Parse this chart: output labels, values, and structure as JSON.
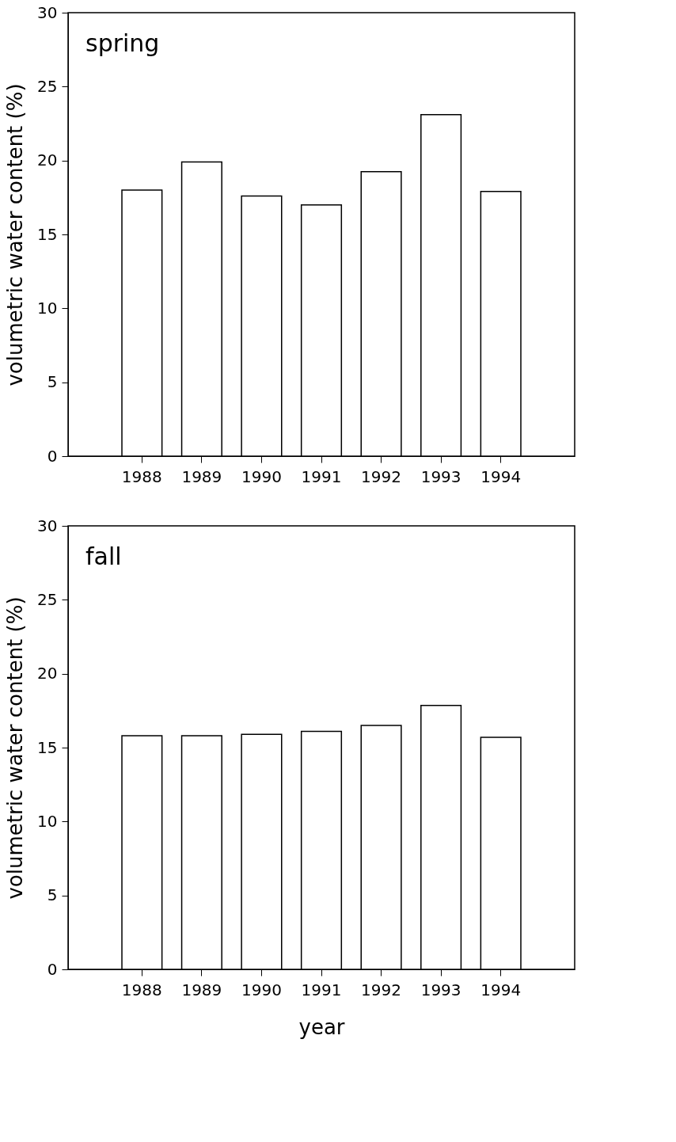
{
  "chart_data": [
    {
      "type": "bar",
      "title": "spring",
      "ylabel": "volumetric water content (%)",
      "categories": [
        "1988",
        "1989",
        "1990",
        "1991",
        "1992",
        "1993",
        "1994"
      ],
      "values": [
        18.0,
        19.9,
        17.6,
        17.0,
        19.25,
        23.1,
        17.9
      ],
      "color": "#ffffff",
      "ylim": [
        0,
        30
      ],
      "yticks": [
        0,
        5,
        10,
        15,
        20,
        25,
        30
      ],
      "grid": false
    },
    {
      "type": "bar",
      "title": "fall",
      "xlabel": "year",
      "ylabel": "volumetric water content (%)",
      "categories": [
        "1988",
        "1989",
        "1990",
        "1991",
        "1992",
        "1993",
        "1994"
      ],
      "values": [
        15.8,
        15.8,
        15.9,
        16.1,
        16.5,
        17.85,
        15.7
      ],
      "color": "#ffffff",
      "ylim": [
        0,
        30
      ],
      "yticks": [
        0,
        5,
        10,
        15,
        20,
        25,
        30
      ],
      "grid": false
    }
  ]
}
